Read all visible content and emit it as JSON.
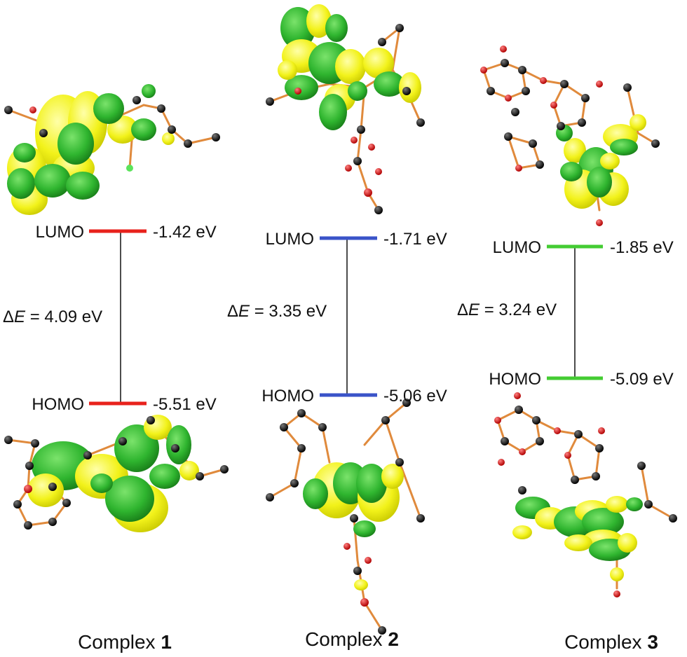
{
  "colors": {
    "complex1_level": "#e8221c",
    "complex2_level": "#3a53c8",
    "complex3_level": "#44cc33",
    "orbital_green": "#2fb52f",
    "orbital_yellow": "#f2f21a",
    "atom_carbon": "#111111",
    "atom_oxygen": "#dd1111",
    "bond": "#e08a3c"
  },
  "complexes": [
    {
      "caption_prefix": "Complex ",
      "caption_number": "1",
      "lumo": {
        "label": "LUMO",
        "energy": "-1.42 eV"
      },
      "homo": {
        "label": "HOMO",
        "energy": "-5.51 eV"
      },
      "gap": {
        "symbol": "Δ",
        "var": "E",
        "text": " = 4.09 eV"
      }
    },
    {
      "caption_prefix": "Complex ",
      "caption_number": "2",
      "lumo": {
        "label": "LUMO",
        "energy": "-1.71 eV"
      },
      "homo": {
        "label": "HOMO",
        "energy": "-5.06 eV"
      },
      "gap": {
        "symbol": "Δ",
        "var": "E",
        "text": " = 3.35 eV"
      }
    },
    {
      "caption_prefix": "Complex ",
      "caption_number": "3",
      "lumo": {
        "label": "LUMO",
        "energy": "-1.85 eV"
      },
      "homo": {
        "label": "HOMO",
        "energy": "-5.09 eV"
      },
      "gap": {
        "symbol": "Δ",
        "var": "E",
        "text": " = 3.24 eV"
      }
    }
  ]
}
